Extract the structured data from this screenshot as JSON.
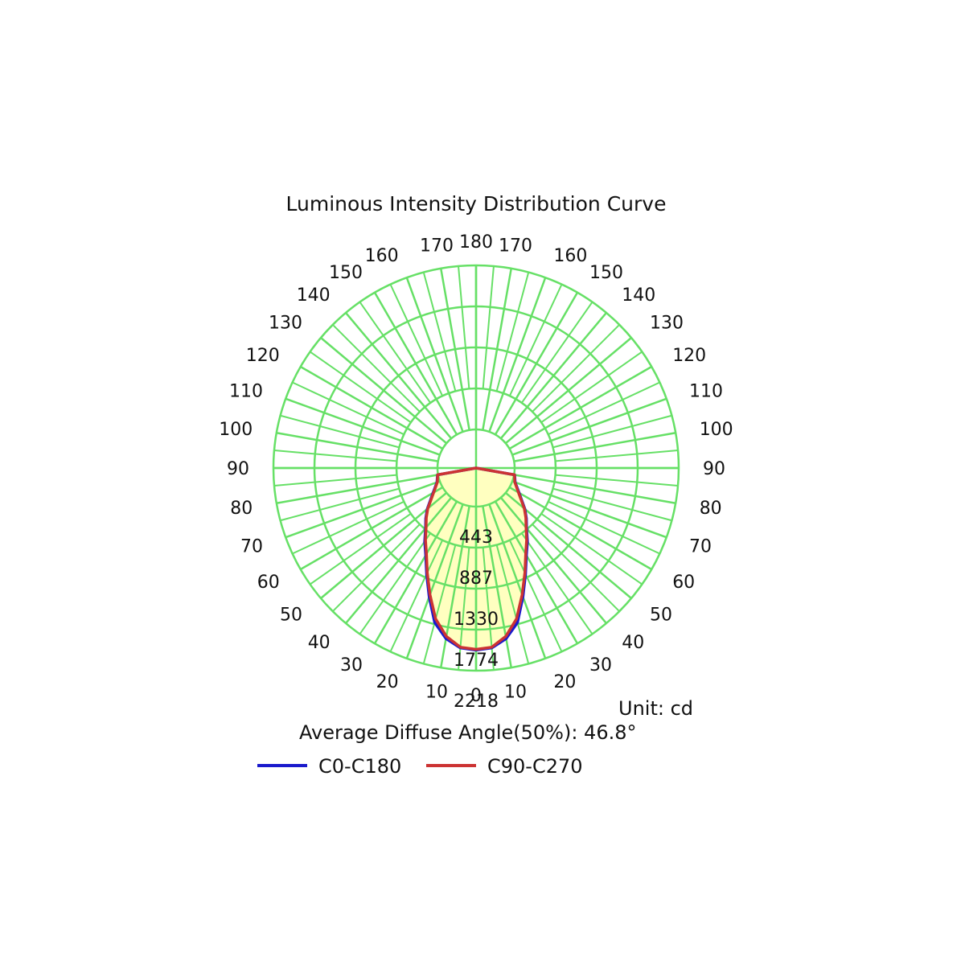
{
  "chart_data": {
    "type": "polar",
    "title": "Luminous Intensity Distribution Curve",
    "unit_label": "Unit: cd",
    "average_angle_label": "Average Diffuse Angle(50%): 46.8°",
    "angle_labels": [
      0,
      10,
      20,
      30,
      40,
      50,
      60,
      70,
      80,
      90,
      100,
      110,
      120,
      130,
      140,
      150,
      160,
      170,
      180
    ],
    "radial_ticks": [
      443,
      887,
      1330,
      1774,
      2218
    ],
    "radial_max": 2218,
    "grid": true,
    "legend_position": "bottom",
    "series": [
      {
        "name": "C0-C180",
        "color": "#1a1acc",
        "angles": [
          0,
          5,
          10,
          15,
          20,
          25,
          30,
          35,
          40,
          45,
          50,
          60,
          70,
          80,
          90
        ],
        "values": [
          1940,
          1920,
          1820,
          1640,
          1330,
          1060,
          840,
          690,
          540,
          440,
          340,
          150,
          40,
          8,
          0
        ]
      },
      {
        "name": "C90-C270",
        "color": "#cc3333",
        "angles": [
          0,
          5,
          10,
          15,
          20,
          25,
          30,
          35,
          40,
          45,
          50,
          60,
          70,
          80,
          90
        ],
        "values": [
          1930,
          1910,
          1790,
          1590,
          1300,
          1040,
          820,
          670,
          530,
          430,
          330,
          140,
          35,
          6,
          0
        ]
      }
    ]
  },
  "colors": {
    "grid": "#66e066",
    "fill": "#ffffc0"
  }
}
